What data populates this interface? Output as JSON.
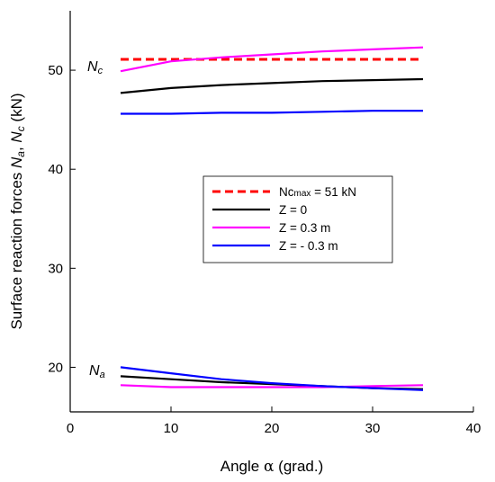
{
  "chart_data": {
    "type": "line",
    "xlabel_prefix": "Angle ",
    "xlabel_symbol": "α",
    "xlabel_suffix": " (grad.)",
    "ylabel_prefix": "Surface reaction forces ",
    "ylabel_na": "Na",
    "ylabel_sep": ", ",
    "ylabel_nc": "Nc",
    "ylabel_suffix": " (kN)",
    "xlim": [
      0,
      40
    ],
    "ylim": [
      15.5,
      56
    ],
    "x_ticks": [
      0,
      10,
      20,
      30,
      40
    ],
    "y_ticks": [
      20,
      30,
      40,
      50
    ],
    "grid": false,
    "legend_position": "center-right",
    "annotations": [
      {
        "text": "Nc",
        "x": 2.0,
        "y": 49.7
      },
      {
        "text": "Na",
        "x": 2.0,
        "y": 19.2
      }
    ],
    "series": [
      {
        "name_main": "Nc",
        "name_sub": "max",
        "name_rest": " = 51 kN",
        "color": "#ff0000",
        "dash": true,
        "x": [
          5,
          35
        ],
        "y": [
          51.1,
          51.1
        ]
      },
      {
        "name": "Z = 0",
        "color": "#000000",
        "dash": false,
        "x": [
          5,
          10,
          15,
          20,
          25,
          30,
          35
        ],
        "y": [
          47.7,
          48.2,
          48.5,
          48.7,
          48.9,
          49.0,
          49.1
        ]
      },
      {
        "name": "Z = 0.3 m",
        "color": "#ff00ff",
        "dash": false,
        "x": [
          5,
          10,
          15,
          20,
          25,
          30,
          35
        ],
        "y": [
          49.9,
          50.9,
          51.3,
          51.6,
          51.9,
          52.1,
          52.3
        ]
      },
      {
        "name": "Z = - 0.3 m",
        "color": "#0000ff",
        "dash": false,
        "x": [
          5,
          10,
          15,
          20,
          25,
          30,
          35
        ],
        "y": [
          45.6,
          45.6,
          45.7,
          45.7,
          45.8,
          45.9,
          45.9
        ]
      },
      {
        "legend": false,
        "color": "#000000",
        "dash": false,
        "x": [
          5,
          10,
          15,
          20,
          25,
          30,
          35
        ],
        "y": [
          19.1,
          18.8,
          18.5,
          18.3,
          18.1,
          17.9,
          17.8
        ]
      },
      {
        "legend": false,
        "color": "#ff00ff",
        "dash": false,
        "x": [
          5,
          10,
          15,
          20,
          25,
          30,
          35
        ],
        "y": [
          18.2,
          18.0,
          18.0,
          18.0,
          18.0,
          18.1,
          18.2
        ]
      },
      {
        "legend": false,
        "color": "#0000ff",
        "dash": false,
        "x": [
          5,
          10,
          15,
          20,
          25,
          30,
          35
        ],
        "y": [
          20.0,
          19.4,
          18.8,
          18.4,
          18.1,
          17.9,
          17.7
        ]
      }
    ]
  }
}
